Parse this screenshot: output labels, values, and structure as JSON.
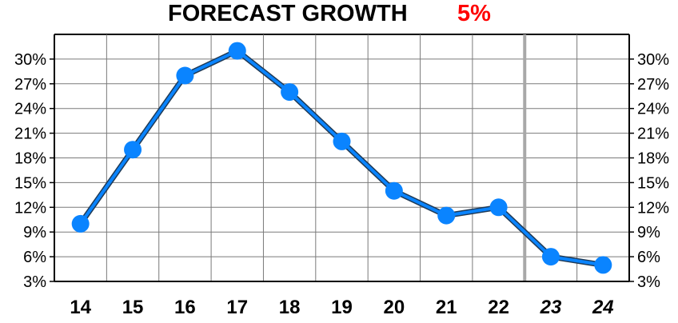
{
  "title": "FORECAST GROWTH",
  "subtitle": "5%",
  "colors": {
    "title": "#000000",
    "subtitle": "#ff0000",
    "series": "#0a84ff",
    "series_outline": "#1f3a56",
    "grid": "#7a7a7a",
    "axis": "#000000",
    "forecast_divider": "#a8a8a8"
  },
  "chart_data": {
    "type": "line",
    "title": "FORECAST GROWTH",
    "subtitle": "5%",
    "xlabel": "",
    "ylabel": "",
    "x": [
      "14",
      "15",
      "16",
      "17",
      "18",
      "19",
      "20",
      "21",
      "22",
      "23",
      "24"
    ],
    "forecast_categories": [
      "23",
      "24"
    ],
    "series": [
      {
        "values": [
          10,
          19,
          28,
          31,
          26,
          20,
          14,
          11,
          12,
          6,
          5
        ]
      }
    ],
    "ylim": [
      3,
      33
    ],
    "yticks": [
      3,
      6,
      9,
      12,
      15,
      18,
      21,
      24,
      27,
      30
    ],
    "ytick_labels": [
      "3%",
      "6%",
      "9%",
      "12%",
      "15%",
      "18%",
      "21%",
      "24%",
      "27%",
      "30%"
    ],
    "secondary_y_axis": true,
    "grid": true,
    "legend": "none"
  }
}
